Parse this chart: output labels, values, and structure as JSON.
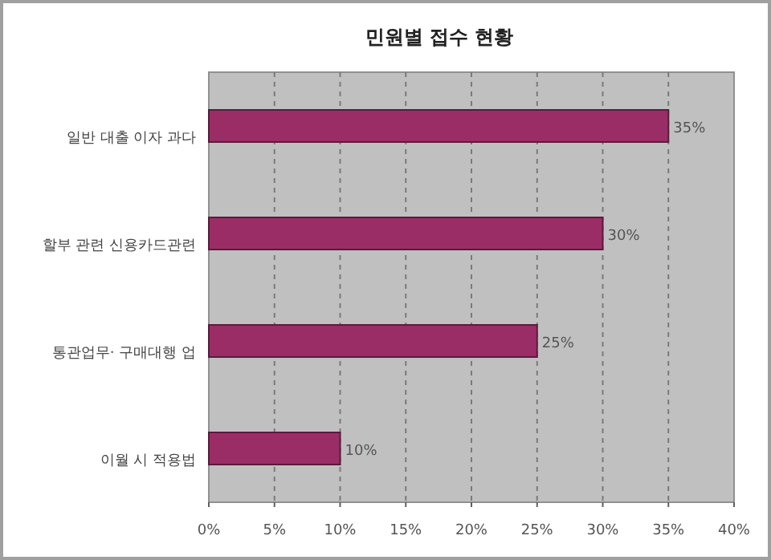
{
  "chart_data": {
    "type": "bar",
    "orientation": "horizontal",
    "title": "민원별 접수 현황",
    "categories": [
      "일반 대출 이자 과다",
      "할부 관련 신용카드관련",
      "통관업무· 구매대행 업",
      "이월 시 적용법"
    ],
    "values": [
      35,
      30,
      25,
      10
    ],
    "color": "#9b2d66",
    "value_labels": [
      "35%",
      "30%",
      "25%",
      "10%"
    ],
    "xlim": [
      0,
      40
    ],
    "xticks": [
      {
        "value": 0,
        "label": "0%"
      },
      {
        "value": 5,
        "label": "5%"
      },
      {
        "value": 10,
        "label": "10%"
      },
      {
        "value": 15,
        "label": "15%"
      },
      {
        "value": 20,
        "label": "20%"
      },
      {
        "value": 25,
        "label": "25%"
      },
      {
        "value": 30,
        "label": "30%"
      },
      {
        "value": 35,
        "label": "35%"
      },
      {
        "value": 40,
        "label": "40%"
      }
    ],
    "grid": "x"
  }
}
